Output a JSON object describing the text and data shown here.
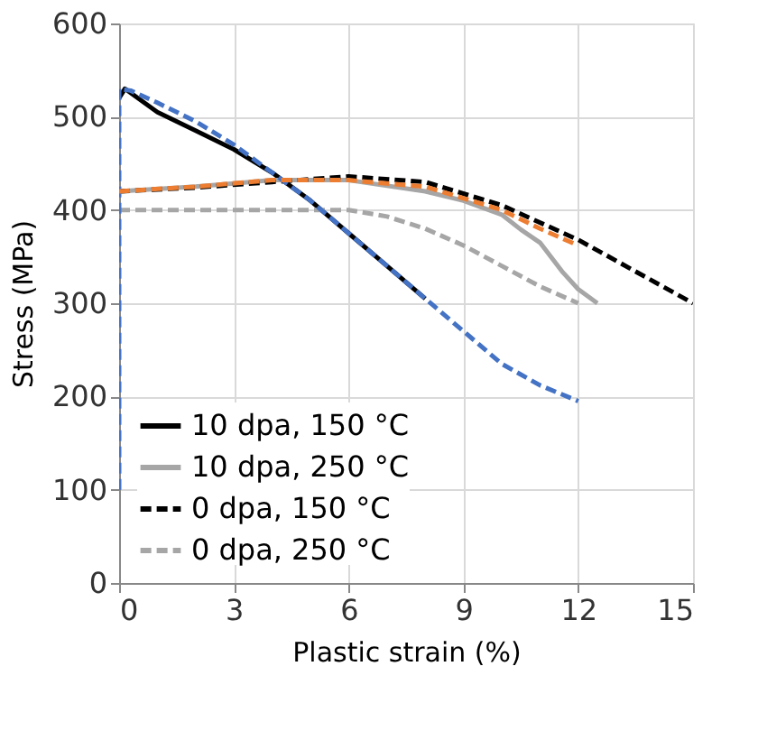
{
  "chart_data": {
    "type": "line",
    "xlabel": "Plastic strain (%)",
    "ylabel": "Stress (MPa)",
    "xlim": [
      0,
      15
    ],
    "xticks": [
      0,
      3,
      6,
      9,
      12,
      15
    ],
    "ylim": [
      0,
      600
    ],
    "yticks": [
      0,
      100,
      200,
      300,
      400,
      500,
      600
    ],
    "grid": true,
    "legend": "bottom left",
    "series": [
      {
        "name": "10 dpa, 150 °C",
        "color": "#000000",
        "line_style": "solid",
        "x": [
          0,
          0.15,
          1,
          2,
          3,
          4,
          5,
          6,
          7,
          8
        ],
        "values": [
          520,
          530,
          505,
          485,
          465,
          440,
          410,
          375,
          340,
          305
        ]
      },
      {
        "name": "10 dpa, 250 °C",
        "color": "#a6a6a6",
        "line_style": "solid",
        "x": [
          0,
          2,
          4,
          6,
          8,
          9,
          10,
          10.5,
          11,
          11.6,
          12,
          12.5
        ],
        "values": [
          420,
          425,
          432,
          432,
          420,
          410,
          395,
          379,
          365,
          333,
          315,
          300
        ]
      },
      {
        "name": "0 dpa, 150 °C",
        "color": "#000000",
        "line_style": "dashed",
        "x": [
          0,
          2,
          4,
          6,
          8,
          10,
          12,
          15
        ],
        "values": [
          420,
          424,
          430,
          436,
          430,
          405,
          368,
          300
        ]
      },
      {
        "name": "0 dpa, 250 °C",
        "color": "#a6a6a6",
        "line_style": "dashed",
        "x": [
          0,
          6,
          7,
          8,
          9,
          10,
          11,
          12
        ],
        "values": [
          400,
          400,
          393,
          380,
          362,
          340,
          318,
          300
        ]
      },
      {
        "color": "#4472c4",
        "line_style": "dashed",
        "x": [
          0,
          0,
          0.3,
          1,
          2,
          3,
          4,
          5,
          6,
          7,
          8,
          9,
          10,
          11,
          12
        ],
        "values": [
          100,
          530,
          528,
          515,
          495,
          470,
          440,
          410,
          375,
          340,
          305,
          270,
          235,
          212,
          195
        ]
      },
      {
        "color": "#ed7d31",
        "line_style": "dashed",
        "x": [
          0,
          2,
          4,
          6,
          8,
          10,
          11,
          12
        ],
        "values": [
          420,
          425,
          432,
          432,
          425,
          400,
          380,
          362
        ]
      }
    ]
  }
}
